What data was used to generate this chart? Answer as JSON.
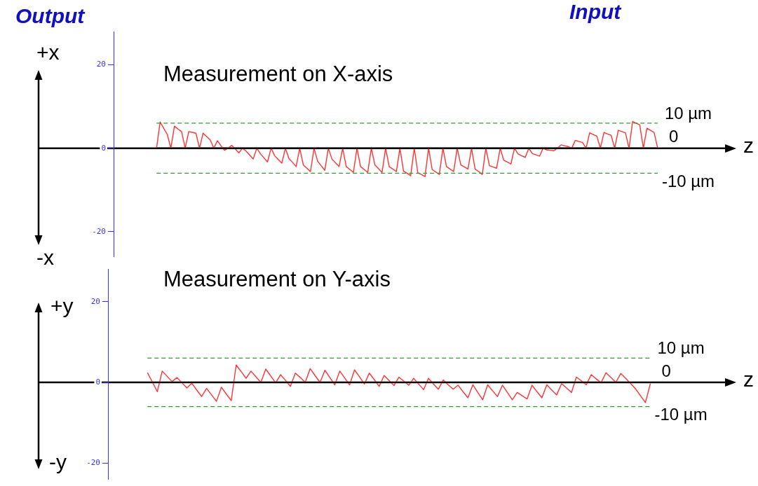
{
  "chart_data": [
    {
      "type": "line",
      "title": "Measurement on X-axis",
      "annotations": [
        "Output",
        "Input",
        "+x",
        "-x"
      ],
      "xlabel": "z",
      "categories": [
        null,
        null,
        null,
        null,
        null,
        null,
        null,
        null,
        null,
        null,
        null,
        null,
        null,
        null,
        null,
        null,
        null,
        null,
        null,
        null,
        null,
        null,
        null,
        null,
        null,
        null,
        null,
        null,
        null,
        null,
        null,
        null,
        null,
        null,
        null,
        null,
        null,
        null,
        null,
        null,
        null,
        null,
        null,
        null,
        null,
        null,
        null,
        null,
        null,
        null,
        null,
        null,
        null,
        null,
        null,
        null,
        null,
        null,
        null,
        null,
        null,
        null,
        null,
        null,
        null,
        null,
        null,
        null,
        null,
        null,
        null,
        null,
        null,
        null,
        null,
        null,
        null,
        null,
        null,
        null,
        null,
        null,
        null,
        null,
        null,
        null,
        null,
        null,
        null,
        null,
        null,
        null,
        null,
        null,
        null,
        null,
        null,
        null,
        null,
        null,
        null,
        null,
        null,
        null,
        null,
        null,
        null,
        null,
        null,
        null,
        null,
        null,
        null,
        null,
        null,
        null,
        null,
        null,
        null,
        null,
        null,
        null,
        null,
        null,
        null,
        null,
        null,
        null,
        null,
        null,
        null,
        null,
        null,
        null,
        null,
        null,
        null,
        null,
        null,
        null,
        null,
        null,
        null,
        null,
        null,
        null,
        null,
        null,
        null,
        null,
        null,
        null,
        null,
        null,
        null,
        null,
        null,
        null,
        null,
        null,
        null,
        null,
        null,
        null,
        null,
        null,
        null,
        null,
        null,
        null,
        null,
        null,
        null
      ],
      "series": [
        {
          "color": "#ff3333",
          "values": [
            null,
            null,
            null,
            null,
            null,
            null,
            null,
            null,
            null,
            null,
            null,
            null,
            0,
            6.3,
            4.8,
            3.3,
            0,
            5.3,
            4.6,
            4.0,
            0,
            4.0,
            3.8,
            3.6,
            0,
            3.6,
            2.8,
            2.0,
            0,
            1.8,
            0.6,
            -0.5,
            0,
            0.7,
            -0.2,
            -1.1,
            0,
            -0.7,
            -1.6,
            -2.6,
            0,
            -1.3,
            -2.3,
            -3.3,
            0,
            -1.8,
            -2.7,
            -3.6,
            0,
            -2.5,
            -3.4,
            -4.4,
            0,
            -4.0,
            -4.8,
            -5.6,
            0,
            -3.1,
            -4.2,
            -5.3,
            0,
            -2.6,
            -3.5,
            -4.4,
            0,
            -4.4,
            -5.1,
            -5.8,
            0,
            -4.4,
            -5.1,
            -5.8,
            0,
            -4.0,
            -4.9,
            -5.8,
            0,
            -4.4,
            -5.0,
            -5.6,
            0,
            -5.5,
            -6.0,
            -6.6,
            0,
            -5.9,
            -6.3,
            -6.8,
            0,
            -5.1,
            -5.7,
            -6.3,
            0,
            -4.4,
            -5.0,
            -5.6,
            0,
            -4.0,
            -4.5,
            -5.0,
            0,
            -5.0,
            -5.6,
            -6.3,
            0,
            -4.2,
            -4.5,
            -4.8,
            0,
            -2.9,
            -3.3,
            -3.8,
            0,
            -1.4,
            -1.8,
            -2.2,
            0,
            -1.3,
            -1.6,
            -1.9,
            0,
            -0.4,
            -0.5,
            -0.6,
            0,
            0.8,
            0.6,
            0.4,
            0,
            1.9,
            1.6,
            1.4,
            0,
            3.7,
            3.3,
            2.9,
            0,
            3.8,
            3.4,
            3.1,
            0,
            4.3,
            4.0,
            3.7,
            0,
            6.4,
            6.0,
            5.6,
            0,
            4.8,
            4.3,
            3.8,
            0,
            null,
            null,
            null,
            null,
            null,
            null,
            null,
            null,
            null,
            null,
            null,
            null,
            null,
            null,
            null,
            null,
            null,
            null,
            null,
            null
          ]
        }
      ],
      "ylim": [
        -26,
        28
      ],
      "yticks": [
        -20,
        0,
        20
      ],
      "grid": false,
      "legend": false,
      "marker": "none",
      "line_style": "solid",
      "ref_lines": [
        {
          "axis": "y",
          "value": 6,
          "label": "10 µm",
          "color": "#339933",
          "line_style": "dashed"
        },
        {
          "axis": "y",
          "value": -6,
          "label": "-10 µm",
          "color": "#339933",
          "line_style": "dashed"
        },
        {
          "axis": "y",
          "value": 0,
          "label": "0",
          "color": "#000000",
          "line_style": "solid"
        }
      ]
    },
    {
      "type": "line",
      "title": "Measurement on Y-axis",
      "annotations": [
        "+y",
        "-y"
      ],
      "xlabel": "z",
      "categories": [
        null,
        null,
        null,
        null,
        null,
        null,
        null,
        null,
        null,
        null,
        null,
        null,
        null,
        null,
        null,
        null,
        null,
        null,
        null,
        null,
        null,
        null,
        null,
        null,
        null,
        null,
        null,
        null,
        null,
        null,
        null,
        null,
        null,
        null,
        null,
        null,
        null,
        null,
        null,
        null,
        null,
        null,
        null,
        null,
        null,
        null,
        null,
        null,
        null,
        null,
        null,
        null,
        null,
        null,
        null,
        null,
        null,
        null,
        null,
        null,
        null,
        null,
        null,
        null,
        null,
        null,
        null,
        null,
        null,
        null,
        null,
        null,
        null,
        null,
        null,
        null,
        null,
        null,
        null,
        null,
        null,
        null,
        null,
        null,
        null,
        null,
        null,
        null,
        null,
        null,
        null,
        null,
        null,
        null,
        null,
        null,
        null,
        null,
        null,
        null,
        null,
        null,
        null,
        null,
        null,
        null,
        null,
        null,
        null,
        null,
        null,
        null,
        null,
        null,
        null,
        null,
        null,
        null,
        null,
        null,
        null,
        null,
        null,
        null,
        null,
        null,
        null
      ],
      "series": [
        {
          "color": "#ff3333",
          "values": [
            null,
            null,
            null,
            null,
            null,
            null,
            null,
            null,
            2.4,
            0.1,
            -2.3,
            2.8,
            1.5,
            0.2,
            1.2,
            -0.1,
            -1.4,
            -0.2,
            -1.9,
            -3.5,
            -1.5,
            -3.1,
            -4.7,
            -1.2,
            -2.9,
            -4.5,
            4.3,
            2.7,
            1.0,
            2.8,
            1.4,
            0,
            3.3,
            1.6,
            -0.1,
            1.9,
            0.5,
            -1.0,
            2.3,
            1.2,
            0,
            3.4,
            1.7,
            0,
            3.0,
            1.2,
            -0.6,
            2.8,
            1.1,
            -0.6,
            3.1,
            1.4,
            -0.4,
            2.3,
            0.7,
            -1.0,
            1.7,
            0.5,
            -0.8,
            1.3,
            0.3,
            -0.7,
            1.0,
            -0.4,
            -1.8,
            1.0,
            -0.4,
            -1.7,
            0.6,
            -0.6,
            -1.7,
            -0.7,
            -2.3,
            -3.8,
            -0.6,
            -2.5,
            -4.3,
            -0.6,
            -2.1,
            -3.5,
            -0.7,
            -2.5,
            -4.3,
            -2.5,
            -3.3,
            -4.1,
            -0.7,
            -2.3,
            -3.8,
            -0.6,
            -1.9,
            -3.1,
            -0.3,
            -1.4,
            -2.5,
            1.3,
            0.4,
            -0.6,
            1.9,
            0.9,
            -0.1,
            2.4,
            1.2,
            0,
            2.2,
            1.0,
            -0.3,
            -1.6,
            -3.3,
            -5.0,
            -0.3,
            null,
            null,
            null,
            null,
            null,
            null,
            null,
            null,
            null,
            null,
            null,
            null,
            null,
            null,
            null,
            null
          ]
        }
      ],
      "ylim": [
        -24,
        28
      ],
      "yticks": [
        -20,
        0,
        20
      ],
      "grid": false,
      "legend": false,
      "marker": "none",
      "line_style": "solid",
      "ref_lines": [
        {
          "axis": "y",
          "value": 6,
          "label": "10 µm",
          "color": "#339933",
          "line_style": "dashed"
        },
        {
          "axis": "y",
          "value": -6,
          "label": "-10 µm",
          "color": "#339933",
          "line_style": "dashed"
        },
        {
          "axis": "y",
          "value": 0,
          "label": "0",
          "color": "#000000",
          "line_style": "solid"
        }
      ]
    }
  ]
}
